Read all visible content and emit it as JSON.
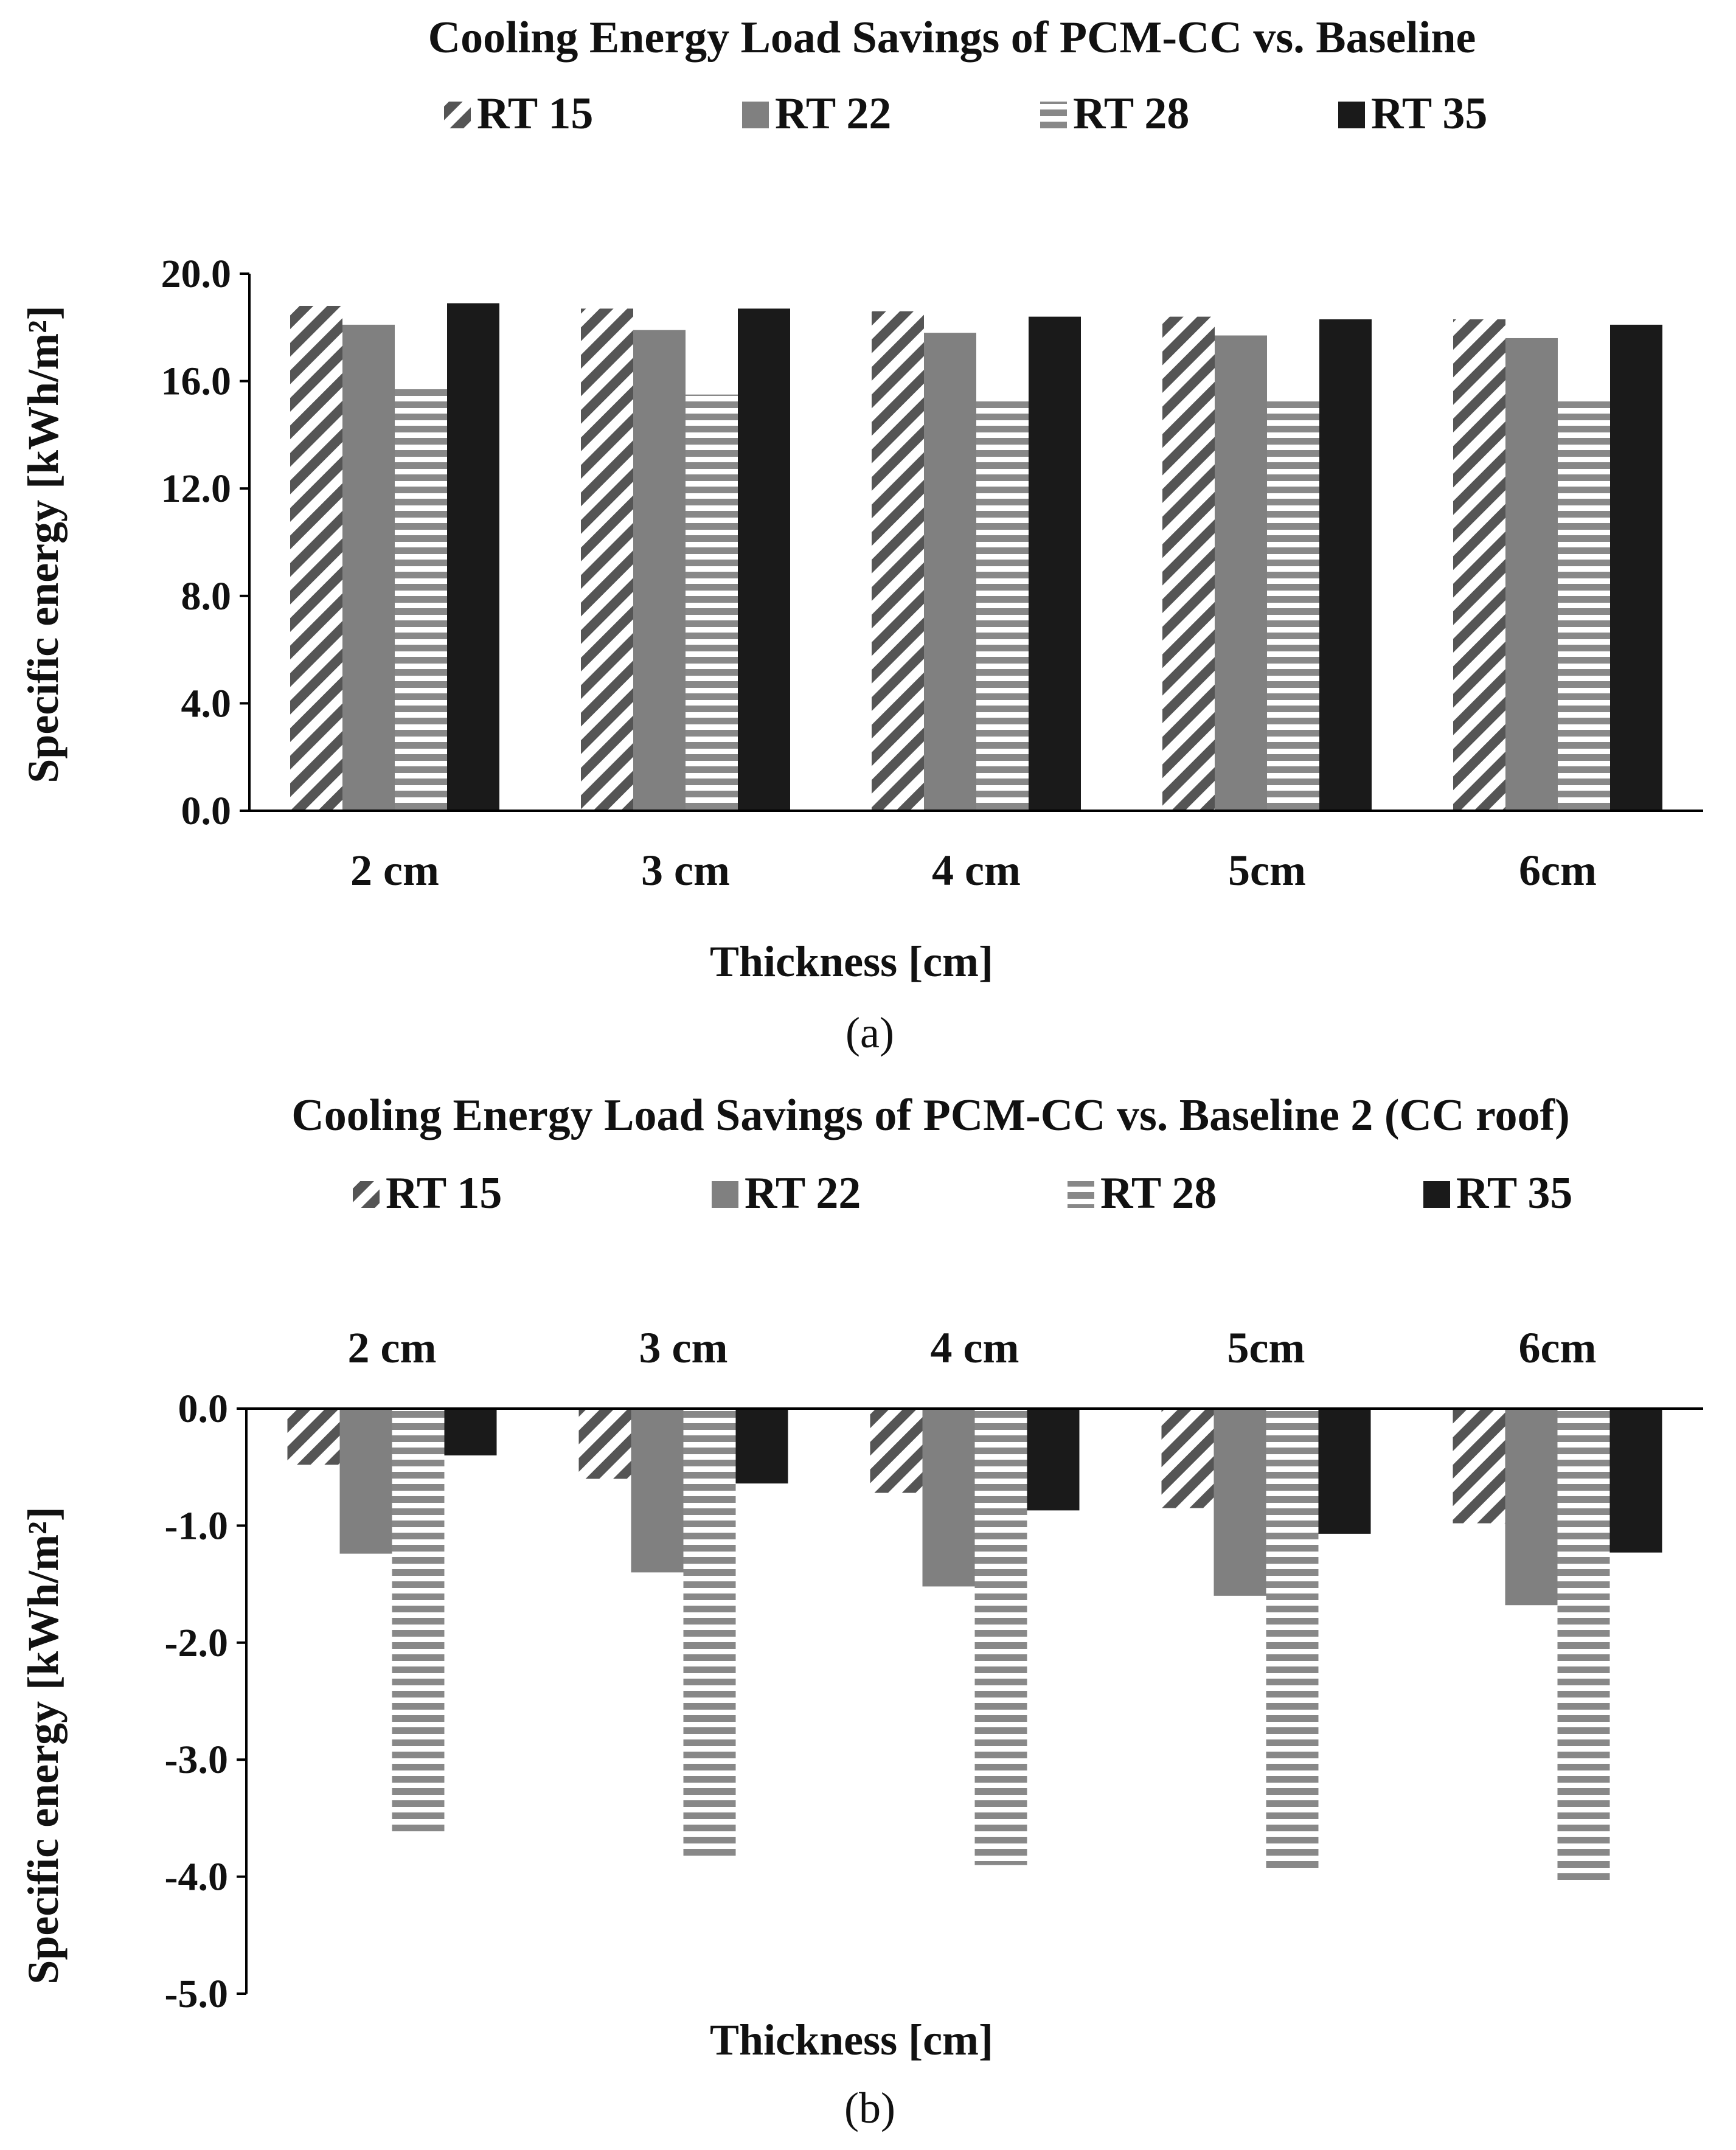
{
  "chart_data": [
    {
      "type": "bar",
      "panel_label": "(a)",
      "title": "Cooling Energy Load Savings of PCM-CC vs. Baseline",
      "xlabel": "Thickness [cm]",
      "ylabel": "Specific energy [kWh/m²]",
      "ylim": [
        0,
        20
      ],
      "yticks": [
        "0.0",
        "4.0",
        "8.0",
        "12.0",
        "16.0",
        "20.0"
      ],
      "categories": [
        "2 cm",
        "3 cm",
        "4 cm",
        "5cm",
        "6cm"
      ],
      "legend_position": "top",
      "series": [
        {
          "name": "RT 15",
          "pattern": "diagonal",
          "values": [
            18.8,
            18.7,
            18.6,
            18.4,
            18.3
          ]
        },
        {
          "name": "RT 22",
          "pattern": "gray",
          "values": [
            18.1,
            17.9,
            17.8,
            17.7,
            17.6
          ]
        },
        {
          "name": "RT 28",
          "pattern": "horizontal",
          "values": [
            15.7,
            15.5,
            15.3,
            15.3,
            15.3
          ]
        },
        {
          "name": "RT 35",
          "pattern": "black",
          "values": [
            18.9,
            18.7,
            18.4,
            18.3,
            18.1
          ]
        }
      ]
    },
    {
      "type": "bar",
      "panel_label": "(b)",
      "title": "Cooling Energy Load Savings of PCM-CC  vs. Baseline 2 (CC roof)",
      "xlabel": "Thickness [cm]",
      "ylabel": "Specific energy [kWh/m²]",
      "ylim": [
        -5,
        0
      ],
      "yticks": [
        "0.0",
        "-1.0",
        "-2.0",
        "-3.0",
        "-4.0",
        "-5.0"
      ],
      "categories": [
        "2 cm",
        "3 cm",
        "4 cm",
        "5cm",
        "6cm"
      ],
      "legend_position": "top",
      "series": [
        {
          "name": "RT 15",
          "pattern": "diagonal",
          "values": [
            -0.48,
            -0.6,
            -0.72,
            -0.85,
            -0.98
          ]
        },
        {
          "name": "RT 22",
          "pattern": "gray",
          "values": [
            -1.24,
            -1.4,
            -1.52,
            -1.6,
            -1.68
          ]
        },
        {
          "name": "RT 28",
          "pattern": "horizontal",
          "values": [
            -3.62,
            -3.86,
            -3.9,
            -3.97,
            -4.05
          ]
        },
        {
          "name": "RT 35",
          "pattern": "black",
          "values": [
            -0.4,
            -0.64,
            -0.87,
            -1.07,
            -1.23
          ]
        }
      ]
    }
  ]
}
